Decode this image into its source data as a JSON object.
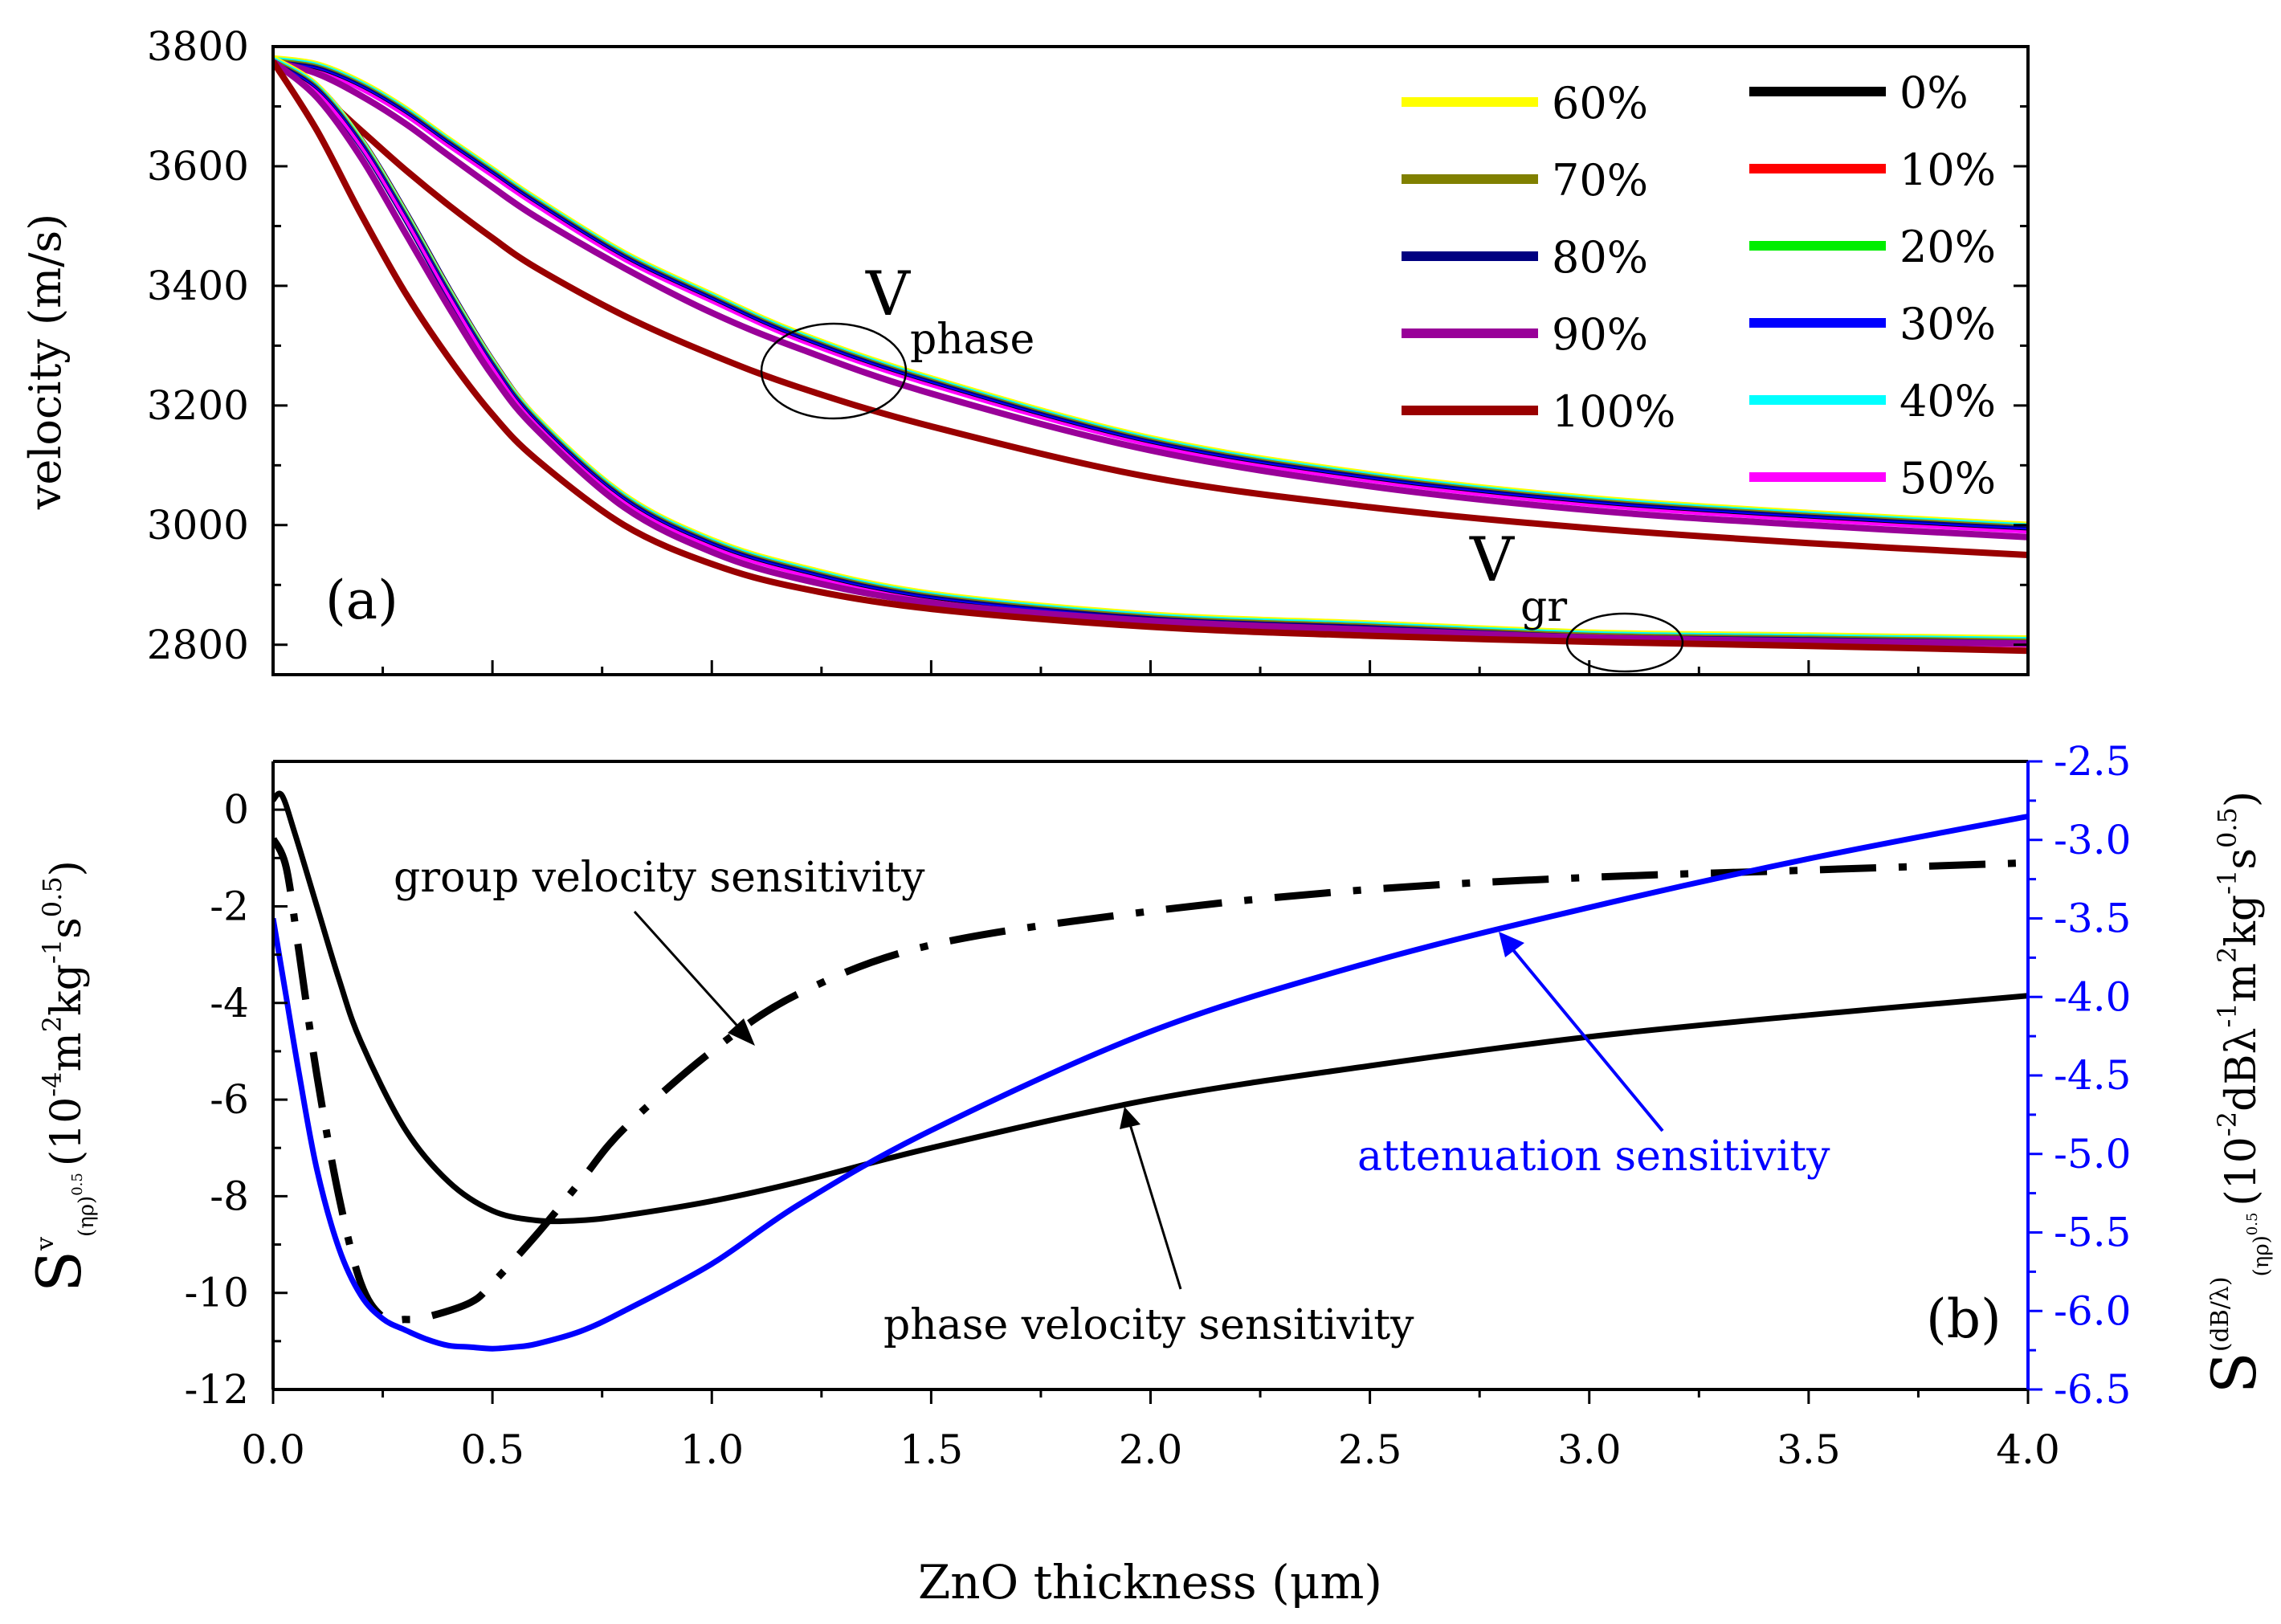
{
  "figure": {
    "x_label": "ZnO thickness (μm)"
  },
  "chart_data": [
    {
      "id": "a",
      "type": "line",
      "panel_label": "(a)",
      "ylabel": "velocity (m/s)",
      "xlim": [
        0,
        4
      ],
      "ylim": [
        2750,
        3800
      ],
      "yticks": [
        "2800",
        "3000",
        "3200",
        "3400",
        "3600",
        "3800"
      ],
      "xticks": [
        "0.0",
        "0.5",
        "1.0",
        "1.5",
        "2.0",
        "2.5",
        "3.0",
        "3.5",
        "4.0"
      ],
      "annotations": {
        "phase_label": "V",
        "phase_subscript": "phase",
        "group_label": "V",
        "group_subscript": "gr"
      },
      "legend_position": "top-right",
      "legend": [
        {
          "name": "60%",
          "color": "#ffff00"
        },
        {
          "name": "70%",
          "color": "#808000"
        },
        {
          "name": "80%",
          "color": "#000080"
        },
        {
          "name": "90%",
          "color": "#990099"
        },
        {
          "name": "100%",
          "color": "#990000"
        },
        {
          "name": "0%",
          "color": "#000000"
        },
        {
          "name": "10%",
          "color": "#ff0000"
        },
        {
          "name": "20%",
          "color": "#00ee00"
        },
        {
          "name": "30%",
          "color": "#0000ff"
        },
        {
          "name": "40%",
          "color": "#00ffff"
        },
        {
          "name": "50%",
          "color": "#ff00ff"
        }
      ],
      "series": [
        {
          "name": "phase 0%-80% (overlapping)",
          "colors": [
            "#000000",
            "#ff0000",
            "#00ee00",
            "#00ffff",
            "#ff00ff",
            "#ffff00",
            "#808000",
            "#000080",
            "#0000ff"
          ],
          "x": [
            0,
            0.1,
            0.2,
            0.3,
            0.4,
            0.5,
            0.6,
            0.8,
            1.0,
            1.2,
            1.5,
            2.0,
            2.5,
            3.0,
            3.5,
            4.0
          ],
          "y": [
            3775,
            3765,
            3735,
            3692,
            3640,
            3590,
            3540,
            3450,
            3380,
            3315,
            3240,
            3140,
            3080,
            3040,
            3015,
            2995
          ]
        },
        {
          "name": "phase 90%",
          "color": "#990099",
          "x": [
            0,
            0.1,
            0.2,
            0.3,
            0.4,
            0.5,
            0.6,
            0.8,
            1.0,
            1.2,
            1.5,
            2.0,
            2.5,
            3.0,
            3.5,
            4.0
          ],
          "y": [
            3775,
            3755,
            3718,
            3672,
            3618,
            3565,
            3515,
            3430,
            3355,
            3295,
            3220,
            3125,
            3065,
            3025,
            3000,
            2980
          ]
        },
        {
          "name": "phase 100%",
          "color": "#990000",
          "x": [
            0,
            0.1,
            0.2,
            0.3,
            0.4,
            0.5,
            0.6,
            0.8,
            1.0,
            1.2,
            1.5,
            2.0,
            2.5,
            3.0,
            3.5,
            4.0
          ],
          "y": [
            3775,
            3725,
            3660,
            3595,
            3535,
            3480,
            3430,
            3350,
            3285,
            3230,
            3165,
            3080,
            3030,
            2995,
            2970,
            2950
          ]
        },
        {
          "name": "group 0%-80% (overlapping)",
          "colors": [
            "#000000",
            "#ff0000",
            "#00ee00",
            "#00ffff",
            "#ff00ff",
            "#ffff00",
            "#808000",
            "#000080",
            "#0000ff"
          ],
          "x": [
            0,
            0.1,
            0.2,
            0.3,
            0.4,
            0.5,
            0.6,
            0.8,
            1.0,
            1.2,
            1.5,
            2.0,
            2.5,
            3.0,
            3.5,
            4.0
          ],
          "y": [
            3775,
            3730,
            3640,
            3520,
            3390,
            3270,
            3175,
            3045,
            2970,
            2925,
            2880,
            2845,
            2830,
            2815,
            2810,
            2805
          ]
        },
        {
          "name": "group 90%",
          "color": "#990099",
          "x": [
            0,
            0.1,
            0.2,
            0.3,
            0.4,
            0.5,
            0.6,
            0.8,
            1.0,
            1.2,
            1.5,
            2.0,
            2.5,
            3.0,
            3.5,
            4.0
          ],
          "y": [
            3775,
            3715,
            3615,
            3490,
            3365,
            3250,
            3160,
            3030,
            2955,
            2910,
            2870,
            2840,
            2825,
            2812,
            2806,
            2802
          ]
        },
        {
          "name": "group 100%",
          "color": "#990000",
          "x": [
            0,
            0.1,
            0.2,
            0.3,
            0.4,
            0.5,
            0.6,
            0.8,
            1.0,
            1.2,
            1.5,
            2.0,
            2.5,
            3.0,
            3.5,
            4.0
          ],
          "y": [
            3775,
            3660,
            3520,
            3390,
            3280,
            3185,
            3110,
            3000,
            2935,
            2895,
            2860,
            2830,
            2815,
            2805,
            2798,
            2790
          ]
        }
      ]
    },
    {
      "id": "b",
      "type": "line",
      "panel_label": "(b)",
      "xlim": [
        0,
        4
      ],
      "ylim": [
        -12,
        1
      ],
      "y2lim": [
        -6.5,
        -2.5
      ],
      "yticks": [
        "-12",
        "-10",
        "-8",
        "-6",
        "-4",
        "-2",
        "0"
      ],
      "y2ticks": [
        "-6.5",
        "-6.0",
        "-5.5",
        "-5.0",
        "-4.5",
        "-4.0",
        "-3.5",
        "-3.0",
        "-2.5"
      ],
      "xticks": [
        "0.0",
        "0.5",
        "1.0",
        "1.5",
        "2.0",
        "2.5",
        "3.0",
        "3.5",
        "4.0"
      ],
      "ylabel": {
        "main": "S",
        "sup": "v",
        "sub": "(ηρ)",
        "subsup": "0.5",
        "unit": "(10",
        "unit_exp": "-4",
        "unit_m": "m",
        "unit_m_exp": "2",
        "unit_kg": "kg",
        "unit_kg_exp": "-1",
        "unit_s": "s",
        "unit_s_exp": "0.5",
        "close": ")"
      },
      "y2label": {
        "main": "S",
        "sup": "(dB/λ)",
        "sub": "(ηρ)",
        "subsup": "0.5",
        "unit": "(10",
        "unit_exp": "-2",
        "unit_db": "dBλ",
        "unit_db_exp": "-1",
        "unit_m": "m",
        "unit_m_exp": "2",
        "unit_kg": "kg",
        "unit_kg_exp": "-1",
        "unit_s": "s",
        "unit_s_exp": "0.5",
        "close": ")"
      },
      "annotations": {
        "group": "group velocity sensitivity",
        "phase": "phase velocity sensitivity",
        "attenuation": "attenuation sensitivity"
      },
      "series": [
        {
          "name": "phase velocity sensitivity",
          "axis": "left",
          "color": "#000000",
          "style": "solid",
          "x": [
            0,
            0.02,
            0.05,
            0.1,
            0.15,
            0.2,
            0.3,
            0.4,
            0.5,
            0.6,
            0.7,
            0.8,
            1.0,
            1.2,
            1.5,
            2.0,
            2.5,
            3.0,
            3.5,
            4.0
          ],
          "y": [
            0.2,
            0.3,
            -0.5,
            -2.0,
            -3.5,
            -4.8,
            -6.6,
            -7.7,
            -8.3,
            -8.5,
            -8.5,
            -8.4,
            -8.1,
            -7.7,
            -7.0,
            -6.0,
            -5.3,
            -4.7,
            -4.25,
            -3.85
          ]
        },
        {
          "name": "group velocity sensitivity",
          "axis": "left",
          "color": "#000000",
          "style": "dashdot",
          "x": [
            0,
            0.03,
            0.06,
            0.1,
            0.15,
            0.2,
            0.25,
            0.3,
            0.35,
            0.45,
            0.5,
            0.6,
            0.7,
            0.8,
            1.0,
            1.2,
            1.5,
            2.0,
            2.5,
            3.0,
            3.5,
            4.0
          ],
          "y": [
            -0.6,
            -1.2,
            -3.0,
            -5.5,
            -8.0,
            -9.8,
            -10.5,
            -10.55,
            -10.5,
            -10.2,
            -9.8,
            -8.8,
            -7.7,
            -6.6,
            -5.0,
            -3.8,
            -2.8,
            -2.1,
            -1.65,
            -1.4,
            -1.25,
            -1.1
          ]
        },
        {
          "name": "attenuation sensitivity",
          "axis": "right",
          "color": "#0000ff",
          "style": "solid",
          "x": [
            0,
            0.03,
            0.06,
            0.1,
            0.15,
            0.2,
            0.25,
            0.3,
            0.35,
            0.4,
            0.45,
            0.5,
            0.55,
            0.6,
            0.7,
            0.8,
            1.0,
            1.2,
            1.5,
            2.0,
            2.5,
            3.0,
            3.5,
            4.0
          ],
          "y": [
            -3.5,
            -4.0,
            -4.5,
            -5.1,
            -5.6,
            -5.9,
            -6.05,
            -6.12,
            -6.18,
            -6.22,
            -6.23,
            -6.24,
            -6.23,
            -6.21,
            -6.13,
            -6.0,
            -5.7,
            -5.32,
            -4.85,
            -4.22,
            -3.78,
            -3.43,
            -3.12,
            -2.85
          ]
        }
      ]
    }
  ]
}
